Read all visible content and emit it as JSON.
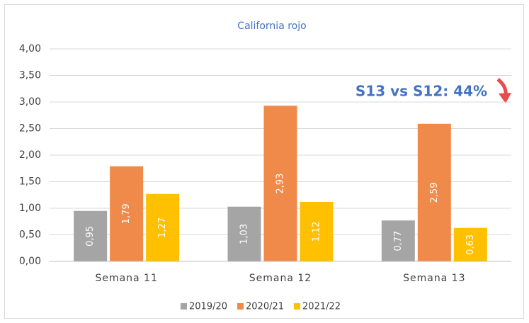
{
  "chart_data": {
    "type": "bar",
    "title": "California rojo",
    "categories": [
      "Semana 11",
      "Semana 12",
      "Semana 13"
    ],
    "series": [
      {
        "name": "2019/20",
        "color": "#a5a5a5",
        "values": [
          0.95,
          1.03,
          0.77
        ],
        "value_labels": [
          "0,95",
          "1,03",
          "0,77"
        ]
      },
      {
        "name": "2020/21",
        "color": "#f08a4b",
        "values": [
          1.79,
          2.93,
          2.59
        ],
        "value_labels": [
          "1,79",
          "2,93",
          "2,59"
        ]
      },
      {
        "name": "2021/22",
        "color": "#ffc000",
        "values": [
          1.27,
          1.12,
          0.63
        ],
        "value_labels": [
          "1,27",
          "1,12",
          "0,63"
        ]
      }
    ],
    "ylim": [
      0,
      4
    ],
    "yticks": [
      {
        "value": 0,
        "label": "0,00"
      },
      {
        "value": 0.5,
        "label": "0,50"
      },
      {
        "value": 1,
        "label": "1,00"
      },
      {
        "value": 1.5,
        "label": "1,50"
      },
      {
        "value": 2,
        "label": "2,00"
      },
      {
        "value": 2.5,
        "label": "2,50"
      },
      {
        "value": 3,
        "label": "3,00"
      },
      {
        "value": 3.5,
        "label": "3,50"
      },
      {
        "value": 4,
        "label": "4,00"
      }
    ],
    "grid": true,
    "legend": "bottom",
    "annotation": "S13 vs S12: 44%"
  }
}
